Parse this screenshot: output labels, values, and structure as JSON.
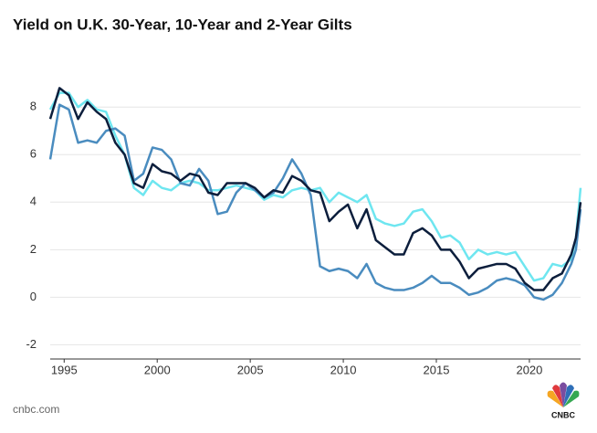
{
  "chart_data": {
    "type": "line",
    "title": "Yield on U.K. 30-Year, 10-Year and 2-Year Gilts",
    "source": "cnbc.com",
    "logo_text": "CNBC",
    "x": [
      1994.25,
      1994.75,
      1995.25,
      1995.75,
      1996.25,
      1996.75,
      1997.25,
      1997.75,
      1998.25,
      1998.75,
      1999.25,
      1999.75,
      2000.25,
      2000.75,
      2001.25,
      2001.75,
      2002.25,
      2002.75,
      2003.25,
      2003.75,
      2004.25,
      2004.75,
      2005.25,
      2005.75,
      2006.25,
      2006.75,
      2007.25,
      2007.75,
      2008.25,
      2008.75,
      2009.25,
      2009.75,
      2010.25,
      2010.75,
      2011.25,
      2011.75,
      2012.25,
      2012.75,
      2013.25,
      2013.75,
      2014.25,
      2014.75,
      2015.25,
      2015.75,
      2016.25,
      2016.75,
      2017.25,
      2017.75,
      2018.25,
      2018.75,
      2019.25,
      2019.75,
      2020.25,
      2020.75,
      2021.25,
      2021.75,
      2022.25,
      2022.5,
      2022.75
    ],
    "series": [
      {
        "color": "#6ee6f0",
        "values": [
          7.9,
          8.6,
          8.6,
          8.0,
          8.3,
          7.9,
          7.8,
          6.8,
          6.0,
          4.6,
          4.3,
          4.9,
          4.6,
          4.5,
          4.8,
          4.9,
          4.8,
          4.5,
          4.5,
          4.6,
          4.7,
          4.6,
          4.5,
          4.1,
          4.3,
          4.2,
          4.5,
          4.6,
          4.5,
          4.6,
          4.0,
          4.4,
          4.2,
          4.0,
          4.3,
          3.3,
          3.1,
          3.0,
          3.1,
          3.6,
          3.7,
          3.2,
          2.5,
          2.6,
          2.3,
          1.6,
          2.0,
          1.8,
          1.9,
          1.8,
          1.9,
          1.3,
          0.7,
          0.8,
          1.4,
          1.3,
          1.6,
          2.5,
          4.6
        ]
      },
      {
        "color": "#4a8cbf",
        "values": [
          5.8,
          8.1,
          7.9,
          6.5,
          6.6,
          6.5,
          7.0,
          7.1,
          6.8,
          4.9,
          5.2,
          6.3,
          6.2,
          5.8,
          4.8,
          4.7,
          5.4,
          4.9,
          3.5,
          3.6,
          4.4,
          4.8,
          4.5,
          4.2,
          4.4,
          5.0,
          5.8,
          5.2,
          4.3,
          1.3,
          1.1,
          1.2,
          1.1,
          0.8,
          1.4,
          0.6,
          0.4,
          0.3,
          0.3,
          0.4,
          0.6,
          0.9,
          0.6,
          0.6,
          0.4,
          0.1,
          0.2,
          0.4,
          0.7,
          0.8,
          0.7,
          0.5,
          0.0,
          -0.1,
          0.1,
          0.6,
          1.4,
          2.0,
          3.7
        ]
      },
      {
        "color": "#0c1e3c",
        "values": [
          7.5,
          8.8,
          8.5,
          7.5,
          8.2,
          7.8,
          7.5,
          6.5,
          6.0,
          4.8,
          4.6,
          5.6,
          5.3,
          5.2,
          4.9,
          5.2,
          5.1,
          4.4,
          4.3,
          4.8,
          4.8,
          4.8,
          4.6,
          4.2,
          4.5,
          4.4,
          5.1,
          4.9,
          4.5,
          4.4,
          3.2,
          3.6,
          3.9,
          2.9,
          3.7,
          2.4,
          2.1,
          1.8,
          1.8,
          2.7,
          2.9,
          2.6,
          2.0,
          2.0,
          1.5,
          0.8,
          1.2,
          1.3,
          1.4,
          1.4,
          1.2,
          0.6,
          0.3,
          0.3,
          0.8,
          1.0,
          1.8,
          2.5,
          4.0
        ]
      }
    ],
    "xlim": [
      1994.25,
      2022.75
    ],
    "xticks": [
      1995,
      2000,
      2005,
      2010,
      2015,
      2020
    ],
    "ylim": [
      -2.6,
      10.2
    ],
    "yticks": [
      -2,
      0,
      2,
      4,
      6,
      8
    ],
    "grid": true
  }
}
